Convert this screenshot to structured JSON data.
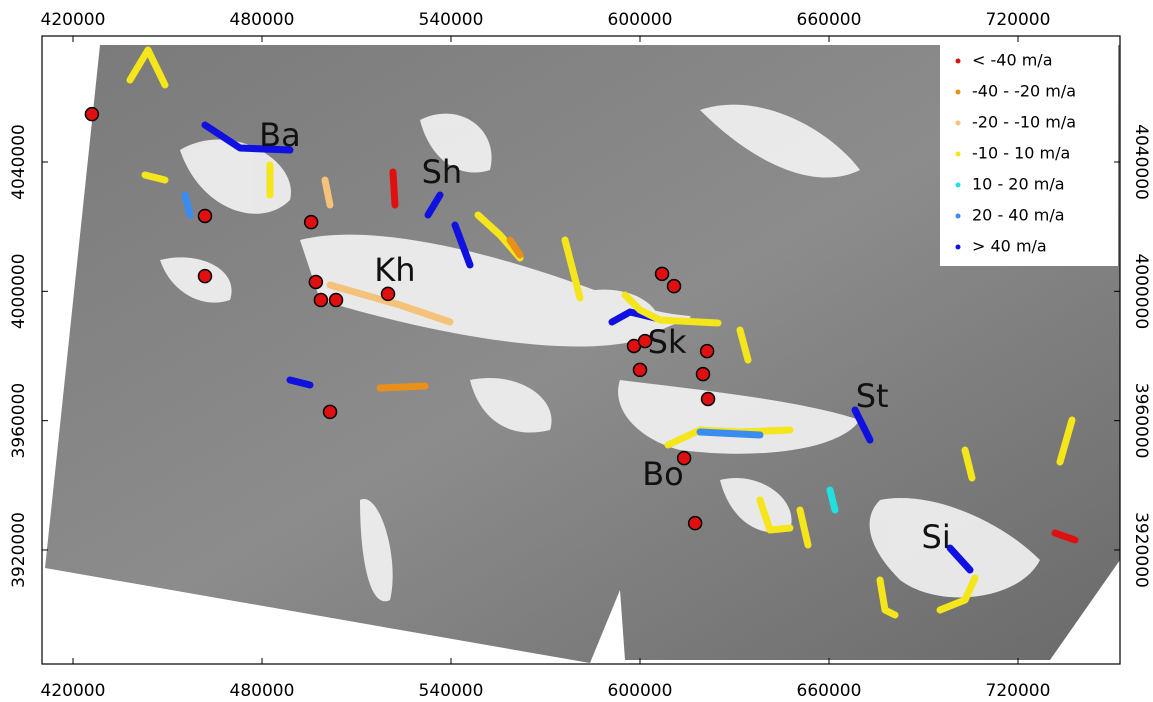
{
  "map": {
    "xlim": [
      410160,
      752380
    ],
    "ylim": [
      3884730,
      4078970
    ],
    "xticks": [
      420000,
      480000,
      540000,
      600000,
      660000,
      720000
    ],
    "yticks": [
      3920000,
      3960000,
      4000000,
      4040000
    ],
    "region_labels": [
      {
        "label": "Ba",
        "x": 485700,
        "y": 4048350
      },
      {
        "label": "Sh",
        "x": 537100,
        "y": 4036900
      },
      {
        "label": "Kh",
        "x": 522200,
        "y": 4006600
      },
      {
        "label": "Sk",
        "x": 608600,
        "y": 3984300
      },
      {
        "label": "St",
        "x": 673700,
        "y": 3967600
      },
      {
        "label": "Bo",
        "x": 607300,
        "y": 3943500
      },
      {
        "label": "Si",
        "x": 694000,
        "y": 3924000
      }
    ],
    "sites": [
      [
        426000,
        4054800
      ],
      [
        461900,
        4023300
      ],
      [
        495600,
        4021400
      ],
      [
        461900,
        4004700
      ],
      [
        497100,
        4002900
      ],
      [
        498700,
        3997300
      ],
      [
        503500,
        3997300
      ],
      [
        520000,
        3999200
      ],
      [
        501600,
        3962700
      ],
      [
        607000,
        4005400
      ],
      [
        610800,
        4001600
      ],
      [
        598100,
        3983100
      ],
      [
        601600,
        3984600
      ],
      [
        600000,
        3975700
      ],
      [
        621300,
        3981500
      ],
      [
        620000,
        3974400
      ],
      [
        621600,
        3966700
      ],
      [
        614000,
        3948400
      ],
      [
        617500,
        3928300
      ]
    ],
    "site_color": "#e01010",
    "legend": [
      {
        "label": "< -40 m/a",
        "color": "#e01010"
      },
      {
        "label": "-40 - -20 m/a",
        "color": "#e8901a"
      },
      {
        "label": "-20 - -10 m/a",
        "color": "#f4c27a"
      },
      {
        "label": "-10 - 10 m/a",
        "color": "#f5e51b"
      },
      {
        "label": "10 - 20 m/a",
        "color": "#22e0e0"
      },
      {
        "label": "20 - 40 m/a",
        "color": "#3b8cf0"
      },
      {
        "label": "> 40 m/a",
        "color": "#1010e0"
      }
    ]
  }
}
